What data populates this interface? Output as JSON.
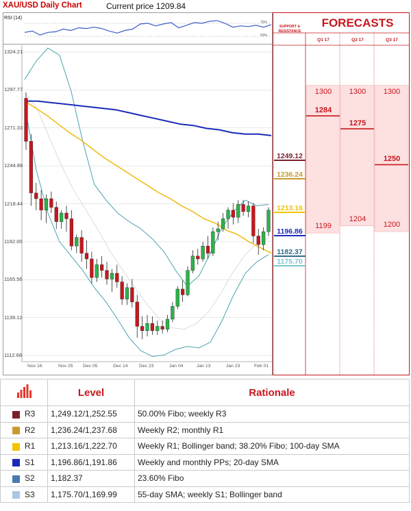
{
  "header": {
    "title": "XAU/USD Daily Chart",
    "current_price": "Current price 1209.84"
  },
  "rsi": {
    "label": "RSI (14)",
    "tick_upper": "70%",
    "tick_lower": "50%"
  },
  "chart_data": {
    "type": "candlestick",
    "title": "XAU/USD Daily Chart",
    "current_price": 1209.84,
    "y_ticks": [
      "1324.21",
      "1297.77",
      "1271.33",
      "1244.88",
      "1218.44",
      "1192.00",
      "1165.56",
      "1139.12",
      "1112.68"
    ],
    "x_ticks": [
      "Nov 16",
      "Nov 25",
      "Dec 05",
      "Dec 14",
      "Dec 23",
      "Jan 04",
      "Jan 13",
      "Jan 23",
      "Feb 01"
    ],
    "ylim": [
      1103,
      1334
    ],
    "candles": [
      {
        "o": 1292,
        "h": 1296,
        "l": 1256,
        "c": 1262
      },
      {
        "o": 1262,
        "h": 1267,
        "l": 1217,
        "c": 1226
      },
      {
        "o": 1226,
        "h": 1233,
        "l": 1214,
        "c": 1222
      },
      {
        "o": 1222,
        "h": 1228,
        "l": 1207,
        "c": 1214
      },
      {
        "o": 1214,
        "h": 1225,
        "l": 1205,
        "c": 1222
      },
      {
        "o": 1222,
        "h": 1227,
        "l": 1212,
        "c": 1216
      },
      {
        "o": 1216,
        "h": 1220,
        "l": 1201,
        "c": 1206
      },
      {
        "o": 1206,
        "h": 1214,
        "l": 1201,
        "c": 1212
      },
      {
        "o": 1212,
        "h": 1217,
        "l": 1199,
        "c": 1208
      },
      {
        "o": 1208,
        "h": 1214,
        "l": 1186,
        "c": 1189
      },
      {
        "o": 1189,
        "h": 1197,
        "l": 1184,
        "c": 1195
      },
      {
        "o": 1195,
        "h": 1200,
        "l": 1178,
        "c": 1184
      },
      {
        "o": 1184,
        "h": 1193,
        "l": 1173,
        "c": 1180
      },
      {
        "o": 1180,
        "h": 1185,
        "l": 1163,
        "c": 1167
      },
      {
        "o": 1167,
        "h": 1180,
        "l": 1164,
        "c": 1176
      },
      {
        "o": 1176,
        "h": 1182,
        "l": 1167,
        "c": 1172
      },
      {
        "o": 1172,
        "h": 1178,
        "l": 1162,
        "c": 1166
      },
      {
        "o": 1166,
        "h": 1173,
        "l": 1157,
        "c": 1170
      },
      {
        "o": 1170,
        "h": 1176,
        "l": 1160,
        "c": 1164
      },
      {
        "o": 1164,
        "h": 1168,
        "l": 1148,
        "c": 1152
      },
      {
        "o": 1152,
        "h": 1163,
        "l": 1148,
        "c": 1160
      },
      {
        "o": 1160,
        "h": 1166,
        "l": 1146,
        "c": 1150
      },
      {
        "o": 1150,
        "h": 1155,
        "l": 1125,
        "c": 1133
      },
      {
        "o": 1133,
        "h": 1140,
        "l": 1124,
        "c": 1130
      },
      {
        "o": 1130,
        "h": 1141,
        "l": 1126,
        "c": 1135
      },
      {
        "o": 1135,
        "h": 1140,
        "l": 1127,
        "c": 1130
      },
      {
        "o": 1130,
        "h": 1137,
        "l": 1127,
        "c": 1133
      },
      {
        "o": 1133,
        "h": 1137,
        "l": 1128,
        "c": 1131
      },
      {
        "o": 1131,
        "h": 1141,
        "l": 1129,
        "c": 1138
      },
      {
        "o": 1138,
        "h": 1150,
        "l": 1136,
        "c": 1147
      },
      {
        "o": 1147,
        "h": 1161,
        "l": 1145,
        "c": 1159
      },
      {
        "o": 1159,
        "h": 1165,
        "l": 1150,
        "c": 1155
      },
      {
        "o": 1155,
        "h": 1175,
        "l": 1154,
        "c": 1172
      },
      {
        "o": 1172,
        "h": 1186,
        "l": 1170,
        "c": 1182
      },
      {
        "o": 1182,
        "h": 1187,
        "l": 1176,
        "c": 1180
      },
      {
        "o": 1180,
        "h": 1192,
        "l": 1178,
        "c": 1189
      },
      {
        "o": 1189,
        "h": 1196,
        "l": 1180,
        "c": 1184
      },
      {
        "o": 1184,
        "h": 1202,
        "l": 1182,
        "c": 1199
      },
      {
        "o": 1199,
        "h": 1206,
        "l": 1193,
        "c": 1201
      },
      {
        "o": 1201,
        "h": 1212,
        "l": 1199,
        "c": 1208
      },
      {
        "o": 1208,
        "h": 1216,
        "l": 1201,
        "c": 1214
      },
      {
        "o": 1214,
        "h": 1219,
        "l": 1204,
        "c": 1209
      },
      {
        "o": 1209,
        "h": 1221,
        "l": 1205,
        "c": 1218
      },
      {
        "o": 1218,
        "h": 1221,
        "l": 1210,
        "c": 1213
      },
      {
        "o": 1213,
        "h": 1220,
        "l": 1209,
        "c": 1217
      },
      {
        "o": 1217,
        "h": 1219,
        "l": 1191,
        "c": 1196
      },
      {
        "o": 1196,
        "h": 1201,
        "l": 1183,
        "c": 1190
      },
      {
        "o": 1190,
        "h": 1202,
        "l": 1186,
        "c": 1199
      },
      {
        "o": 1199,
        "h": 1216,
        "l": 1196,
        "c": 1214
      }
    ],
    "sma100": [
      1290,
      1285,
      1280,
      1274,
      1268,
      1263,
      1257,
      1251,
      1246,
      1241,
      1236,
      1231,
      1226,
      1222,
      1217,
      1213,
      1208,
      1205,
      1200,
      1197,
      1192,
      1188,
      1184
    ],
    "sma200": [
      1290,
      1290,
      1289,
      1288,
      1287,
      1286,
      1285,
      1284,
      1282,
      1280,
      1278,
      1276,
      1274,
      1273,
      1271,
      1270,
      1268,
      1267,
      1267,
      1266
    ],
    "bb_upper": [
      1305,
      1318,
      1327,
      1322,
      1297,
      1262,
      1232,
      1221,
      1212,
      1206,
      1201,
      1194,
      1185,
      1172,
      1161,
      1168,
      1184,
      1202,
      1213,
      1221,
      1217,
      1218
    ],
    "bb_lower": [
      1287,
      1242,
      1212,
      1192,
      1182,
      1172,
      1160,
      1150,
      1138,
      1125,
      1116,
      1112,
      1113,
      1117,
      1119,
      1118,
      1122,
      1137,
      1155,
      1170,
      1178,
      1183
    ],
    "bb_mid": [
      1296,
      1285,
      1265,
      1245,
      1228,
      1214,
      1200,
      1185,
      1172,
      1160,
      1148,
      1138,
      1132,
      1131,
      1135,
      1143,
      1156,
      1171,
      1183,
      1191,
      1195
    ],
    "rsi": [
      56,
      58,
      52,
      56,
      57,
      61,
      59,
      63,
      62,
      64,
      62,
      58,
      55,
      59,
      61,
      69,
      70,
      66,
      69,
      71,
      63,
      67,
      71,
      70,
      73,
      74,
      70,
      64,
      66,
      65,
      67,
      64,
      68
    ]
  },
  "levels_panel": {
    "header": "SUPPORT & RESISTANCE",
    "labels": [
      {
        "text": "1249.12",
        "color": "#7b1f2c",
        "value": 1249.12
      },
      {
        "text": "1236.24",
        "color": "#c99a2e",
        "value": 1236.24
      },
      {
        "text": "1213.16",
        "color": "#f3c300",
        "value": 1213.16
      },
      {
        "text": "1196.86",
        "color": "#1a2ab8",
        "value": 1196.86
      },
      {
        "text": "1182.37",
        "color": "#2e6b8c",
        "value": 1182.37
      },
      {
        "text": "1175.70",
        "color": "#7fc4d1",
        "value": 1175.7
      }
    ]
  },
  "forecasts": {
    "title": "FORECASTS",
    "quarters": [
      "Q1 17",
      "Q2 17",
      "Q3 17"
    ],
    "bands": [
      {
        "high": "1300",
        "low": "1199",
        "mid": "1284",
        "high_v": 1300,
        "low_v": 1199,
        "mid_v": 1284
      },
      {
        "high": "1300",
        "low": "1204",
        "mid": "1275",
        "high_v": 1300,
        "low_v": 1204,
        "mid_v": 1275
      },
      {
        "high": "1300",
        "low": "1200",
        "mid": "1250",
        "high_v": 1300,
        "low_v": 1200,
        "mid_v": 1250
      }
    ]
  },
  "table": {
    "headers": [
      "Level",
      "Rationale"
    ],
    "rows": [
      {
        "name": "R3",
        "level": "1,249.12/1,252.55",
        "rationale": "50.00% Fibo; weekly R3",
        "color": "#7b1f2c"
      },
      {
        "name": "R2",
        "level": "1,236.24/1,237.68",
        "rationale": "Weekly R2; monthly R1",
        "color": "#c99a2e"
      },
      {
        "name": "R1",
        "level": "1,213.16/1,222.70",
        "rationale": "Weekly R1; Bollinger band; 38.20% Fibo; 100-day SMA",
        "color": "#f3c300"
      },
      {
        "name": "S1",
        "level": "1,196.86/1,191.86",
        "rationale": "Weekly and monthly PPs; 20-day SMA",
        "color": "#1a2ab8"
      },
      {
        "name": "S2",
        "level": "1,182.37",
        "rationale": "23.60% Fibo",
        "color": "#4a7ab0"
      },
      {
        "name": "S3",
        "level": "1,175.70/1,169.99",
        "rationale": "55-day SMA; weekly S1; Bollinger band",
        "color": "#a9c7e6"
      }
    ]
  }
}
